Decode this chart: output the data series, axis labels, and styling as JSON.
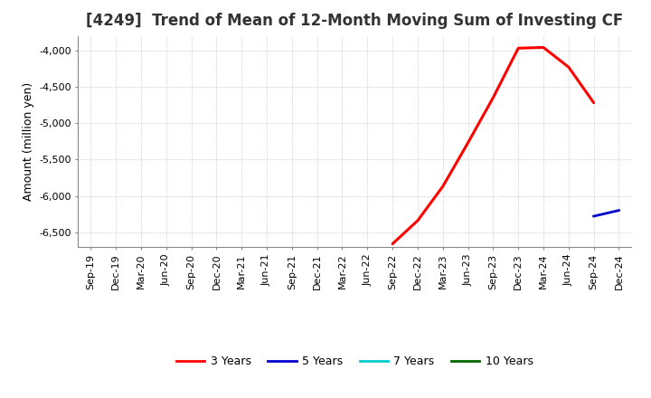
{
  "title": "[4249]  Trend of Mean of 12-Month Moving Sum of Investing CF",
  "ylabel": "Amount (million yen)",
  "background_color": "#ffffff",
  "plot_background_color": "#ffffff",
  "grid_color": "#b0b0b0",
  "x_labels": [
    "Sep-19",
    "Dec-19",
    "Mar-20",
    "Jun-20",
    "Sep-20",
    "Dec-20",
    "Mar-21",
    "Jun-21",
    "Sep-21",
    "Dec-21",
    "Mar-22",
    "Jun-22",
    "Sep-22",
    "Dec-22",
    "Mar-23",
    "Jun-23",
    "Sep-23",
    "Dec-23",
    "Mar-24",
    "Jun-24",
    "Sep-24",
    "Dec-24"
  ],
  "ylim": [
    -6700,
    -3800
  ],
  "yticks": [
    -6500,
    -6000,
    -5500,
    -5000,
    -4500,
    -4000
  ],
  "red_x": [
    "Sep-22",
    "Dec-22",
    "Mar-23",
    "Jun-23",
    "Sep-23",
    "Dec-23",
    "Mar-24",
    "Jun-24",
    "Sep-24"
  ],
  "red_y": [
    -6660,
    -6340,
    -5870,
    -5270,
    -4650,
    -3970,
    -3960,
    -4230,
    -4720
  ],
  "blue_x": [
    "Sep-24",
    "Dec-24"
  ],
  "blue_y": [
    -6280,
    -6200
  ],
  "legend_items": [
    {
      "label": "3 Years",
      "color": "#ff0000"
    },
    {
      "label": "5 Years",
      "color": "#0000cc"
    },
    {
      "label": "7 Years",
      "color": "#00cccc"
    },
    {
      "label": "10 Years",
      "color": "#006600"
    }
  ],
  "title_fontsize": 12,
  "axis_fontsize": 8,
  "ylabel_fontsize": 9
}
